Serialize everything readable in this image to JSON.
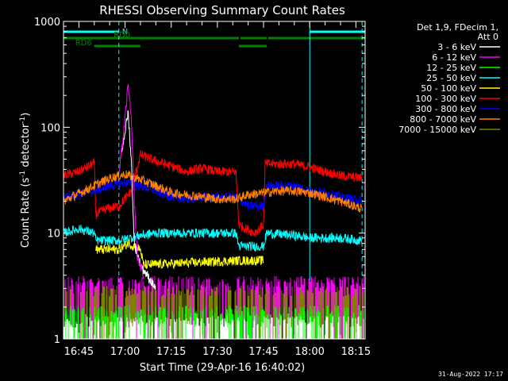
{
  "chart_data": {
    "type": "line",
    "title": "RHESSI Observing Summary Count Rates",
    "xlabel": "Start Time (29-Apr-16 16:40:02)",
    "ylabel_main": "Count Rate (s",
    "ylabel_sup1": "-1",
    "ylabel_mid": " detector",
    "ylabel_sup2": "-1",
    "ylabel_end": ")",
    "yscale": "log",
    "ylim": [
      1,
      1000
    ],
    "xlim_minutes": [
      0,
      98
    ],
    "x_unit": "minutes after 16:40:02",
    "yticks": [
      {
        "v": 1,
        "label": "1"
      },
      {
        "v": 10,
        "label": "10"
      },
      {
        "v": 100,
        "label": "100"
      },
      {
        "v": 1000,
        "label": "1000"
      }
    ],
    "xticks": [
      {
        "t": 5,
        "label": "16:45"
      },
      {
        "t": 20,
        "label": "17:00"
      },
      {
        "t": 35,
        "label": "17:15"
      },
      {
        "t": 50,
        "label": "17:30"
      },
      {
        "t": 65,
        "label": "17:45"
      },
      {
        "t": 80,
        "label": "18:00"
      },
      {
        "t": 95,
        "label": "18:15"
      }
    ],
    "legend_header": [
      "Det 1,9, FDecim 1,",
      "Att 0"
    ],
    "legend": [
      {
        "label": "3 - 6 keV",
        "color": "#ffffff"
      },
      {
        "label": "6 - 12 keV",
        "color": "#ff00ff"
      },
      {
        "label": "12 - 25 keV",
        "color": "#00ff00"
      },
      {
        "label": "25 - 50 keV",
        "color": "#00ffff"
      },
      {
        "label": "50 - 100 keV",
        "color": "#ffff00"
      },
      {
        "label": "100 - 300 keV",
        "color": "#ff0000"
      },
      {
        "label": "300 - 800 keV",
        "color": "#0000ff"
      },
      {
        "label": "800 - 7000 keV",
        "color": "#ff8000"
      },
      {
        "label": "7000 - 15000 keV",
        "color": "#808000"
      }
    ],
    "flags": [
      {
        "label": "N",
        "color": "#00ffff",
        "segments": [
          [
            0,
            18
          ],
          [
            80,
            98
          ]
        ]
      },
      {
        "label": "RD0",
        "color": "#008000",
        "segments": [
          [
            0,
            57
          ],
          [
            57.5,
            66
          ],
          [
            66.5,
            98
          ]
        ]
      },
      {
        "label": "RD6",
        "color": "#008000",
        "segments": [
          [
            10,
            25
          ],
          [
            57,
            66
          ]
        ]
      }
    ],
    "vlines_solid": [
      80
    ],
    "vlines_dashed": [
      18,
      97
    ],
    "series": [
      {
        "name": "100 - 300 keV",
        "color": "#ff0000",
        "points": [
          [
            0,
            35
          ],
          [
            5,
            38
          ],
          [
            10,
            46
          ],
          [
            10.5,
            15
          ],
          [
            14,
            17
          ],
          [
            18,
            18
          ],
          [
            22,
            25
          ],
          [
            25,
            55
          ],
          [
            30,
            48
          ],
          [
            40,
            38
          ],
          [
            45,
            41
          ],
          [
            50,
            38
          ],
          [
            56,
            38
          ],
          [
            57,
            12
          ],
          [
            62,
            10
          ],
          [
            65,
            12
          ],
          [
            65.5,
            45
          ],
          [
            75,
            45
          ],
          [
            80,
            42
          ],
          [
            85,
            38
          ],
          [
            90,
            35
          ],
          [
            97,
            33
          ]
        ]
      },
      {
        "name": "300 - 800 keV",
        "color": "#0000ff",
        "points": [
          [
            0,
            22
          ],
          [
            10,
            25
          ],
          [
            15,
            28
          ],
          [
            20,
            30
          ],
          [
            25,
            28
          ],
          [
            30,
            25
          ],
          [
            35,
            22
          ],
          [
            40,
            21
          ],
          [
            45,
            22
          ],
          [
            50,
            22
          ],
          [
            56,
            22
          ],
          [
            60,
            18
          ],
          [
            65,
            18
          ],
          [
            66,
            28
          ],
          [
            75,
            28
          ],
          [
            80,
            25
          ],
          [
            85,
            24
          ],
          [
            90,
            22
          ],
          [
            97,
            20
          ]
        ]
      },
      {
        "name": "800 - 7000 keV",
        "color": "#ff8000",
        "points": [
          [
            0,
            20
          ],
          [
            10,
            28
          ],
          [
            15,
            33
          ],
          [
            20,
            36
          ],
          [
            25,
            32
          ],
          [
            30,
            28
          ],
          [
            35,
            24
          ],
          [
            40,
            23
          ],
          [
            45,
            22
          ],
          [
            50,
            21
          ],
          [
            56,
            21
          ],
          [
            60,
            23
          ],
          [
            65,
            24
          ],
          [
            70,
            25
          ],
          [
            75,
            25
          ],
          [
            80,
            24
          ],
          [
            85,
            22
          ],
          [
            90,
            20
          ],
          [
            97,
            17
          ]
        ]
      },
      {
        "name": "25 - 50 keV",
        "color": "#00ffff",
        "points": [
          [
            0,
            10
          ],
          [
            5,
            11
          ],
          [
            10,
            10
          ],
          [
            10.5,
            8.5
          ],
          [
            18,
            8.5
          ],
          [
            25,
            9.5
          ],
          [
            30,
            10
          ],
          [
            40,
            10
          ],
          [
            50,
            10
          ],
          [
            56,
            10
          ],
          [
            57,
            7.5
          ],
          [
            65,
            7.5
          ],
          [
            66,
            10
          ],
          [
            75,
            9.5
          ],
          [
            80,
            9
          ],
          [
            90,
            9
          ],
          [
            97,
            8.5
          ]
        ]
      },
      {
        "name": "50 - 100 keV",
        "color": "#ffff00",
        "points": [
          [
            10.5,
            7
          ],
          [
            18,
            7
          ],
          [
            21,
            8
          ],
          [
            25,
            7
          ],
          [
            26,
            5
          ],
          [
            57,
            5.5
          ],
          [
            65,
            5.5
          ]
        ]
      },
      {
        "name": "3 - 6 keV",
        "color": "#ffffff",
        "points": [
          [
            19,
            60
          ],
          [
            21,
            140
          ],
          [
            22,
            50
          ],
          [
            23,
            8
          ],
          [
            25,
            5
          ],
          [
            30,
            3
          ]
        ]
      },
      {
        "name": "6 - 12 keV",
        "color": "#ff00ff",
        "points": [
          [
            18,
            35
          ],
          [
            20,
            120
          ],
          [
            21,
            260
          ],
          [
            22,
            120
          ],
          [
            23,
            20
          ],
          [
            24,
            6
          ],
          [
            26,
            4
          ]
        ]
      }
    ],
    "noise_floor": [
      {
        "name": "6 - 12 keV",
        "color": "#ff00ff",
        "level": 3.6
      },
      {
        "name": "7000 - 15000 keV",
        "color": "#808000",
        "level": 2.9
      },
      {
        "name": "12 - 25 keV",
        "color": "#00ff00",
        "level": 1.9
      },
      {
        "name": "3 - 6 keV",
        "color": "#ffffff",
        "level": 1.5
      }
    ]
  },
  "timestamp": "31-Aug-2022 17:17"
}
